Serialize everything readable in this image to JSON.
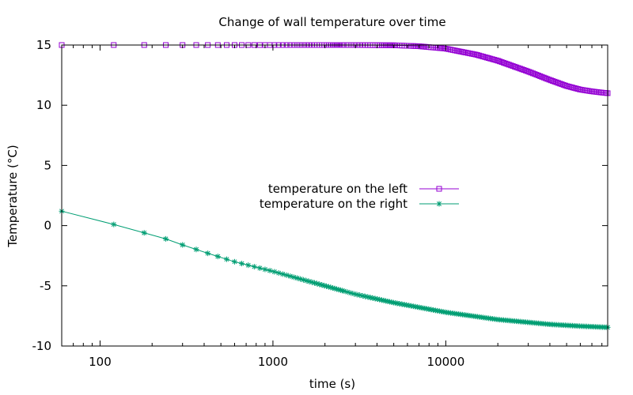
{
  "chart_data": {
    "type": "line",
    "title": "Change of wall temperature over time",
    "xlabel": "time (s)",
    "ylabel": "Temperature (°C)",
    "xscale": "log",
    "xlim": [
      60,
      86400
    ],
    "ylim": [
      -10,
      15
    ],
    "x_ticks": [
      100,
      1000,
      10000
    ],
    "x_tick_labels": [
      "100",
      "1000",
      "10000"
    ],
    "y_ticks": [
      -10,
      -5,
      0,
      5,
      10,
      15
    ],
    "y_tick_labels": [
      "-10",
      "-5",
      "0",
      "5",
      "10",
      "15"
    ],
    "grid": false,
    "legend_position": "center-right",
    "x_step": 60,
    "series": [
      {
        "name": "temperature on the left",
        "color": "#9400d3",
        "marker": "open-square",
        "x": [
          60,
          600,
          1000,
          2000,
          3000,
          5000,
          7000,
          10000,
          15000,
          20000,
          30000,
          40000,
          50000,
          60000,
          70000,
          80000,
          86400
        ],
        "values": [
          15.0,
          15.0,
          15.0,
          15.0,
          15.0,
          14.98,
          14.9,
          14.7,
          14.2,
          13.7,
          12.8,
          12.1,
          11.6,
          11.3,
          11.15,
          11.05,
          11.0
        ]
      },
      {
        "name": "temperature on the right",
        "color": "#009e73",
        "marker": "asterisk",
        "x": [
          60,
          120,
          180,
          240,
          300,
          420,
          600,
          1000,
          2000,
          3000,
          5000,
          10000,
          20000,
          40000,
          60000,
          86400
        ],
        "values": [
          1.2,
          0.1,
          -0.6,
          -1.1,
          -1.6,
          -2.3,
          -3.0,
          -3.8,
          -5.0,
          -5.7,
          -6.4,
          -7.2,
          -7.8,
          -8.2,
          -8.35,
          -8.45
        ]
      }
    ]
  }
}
